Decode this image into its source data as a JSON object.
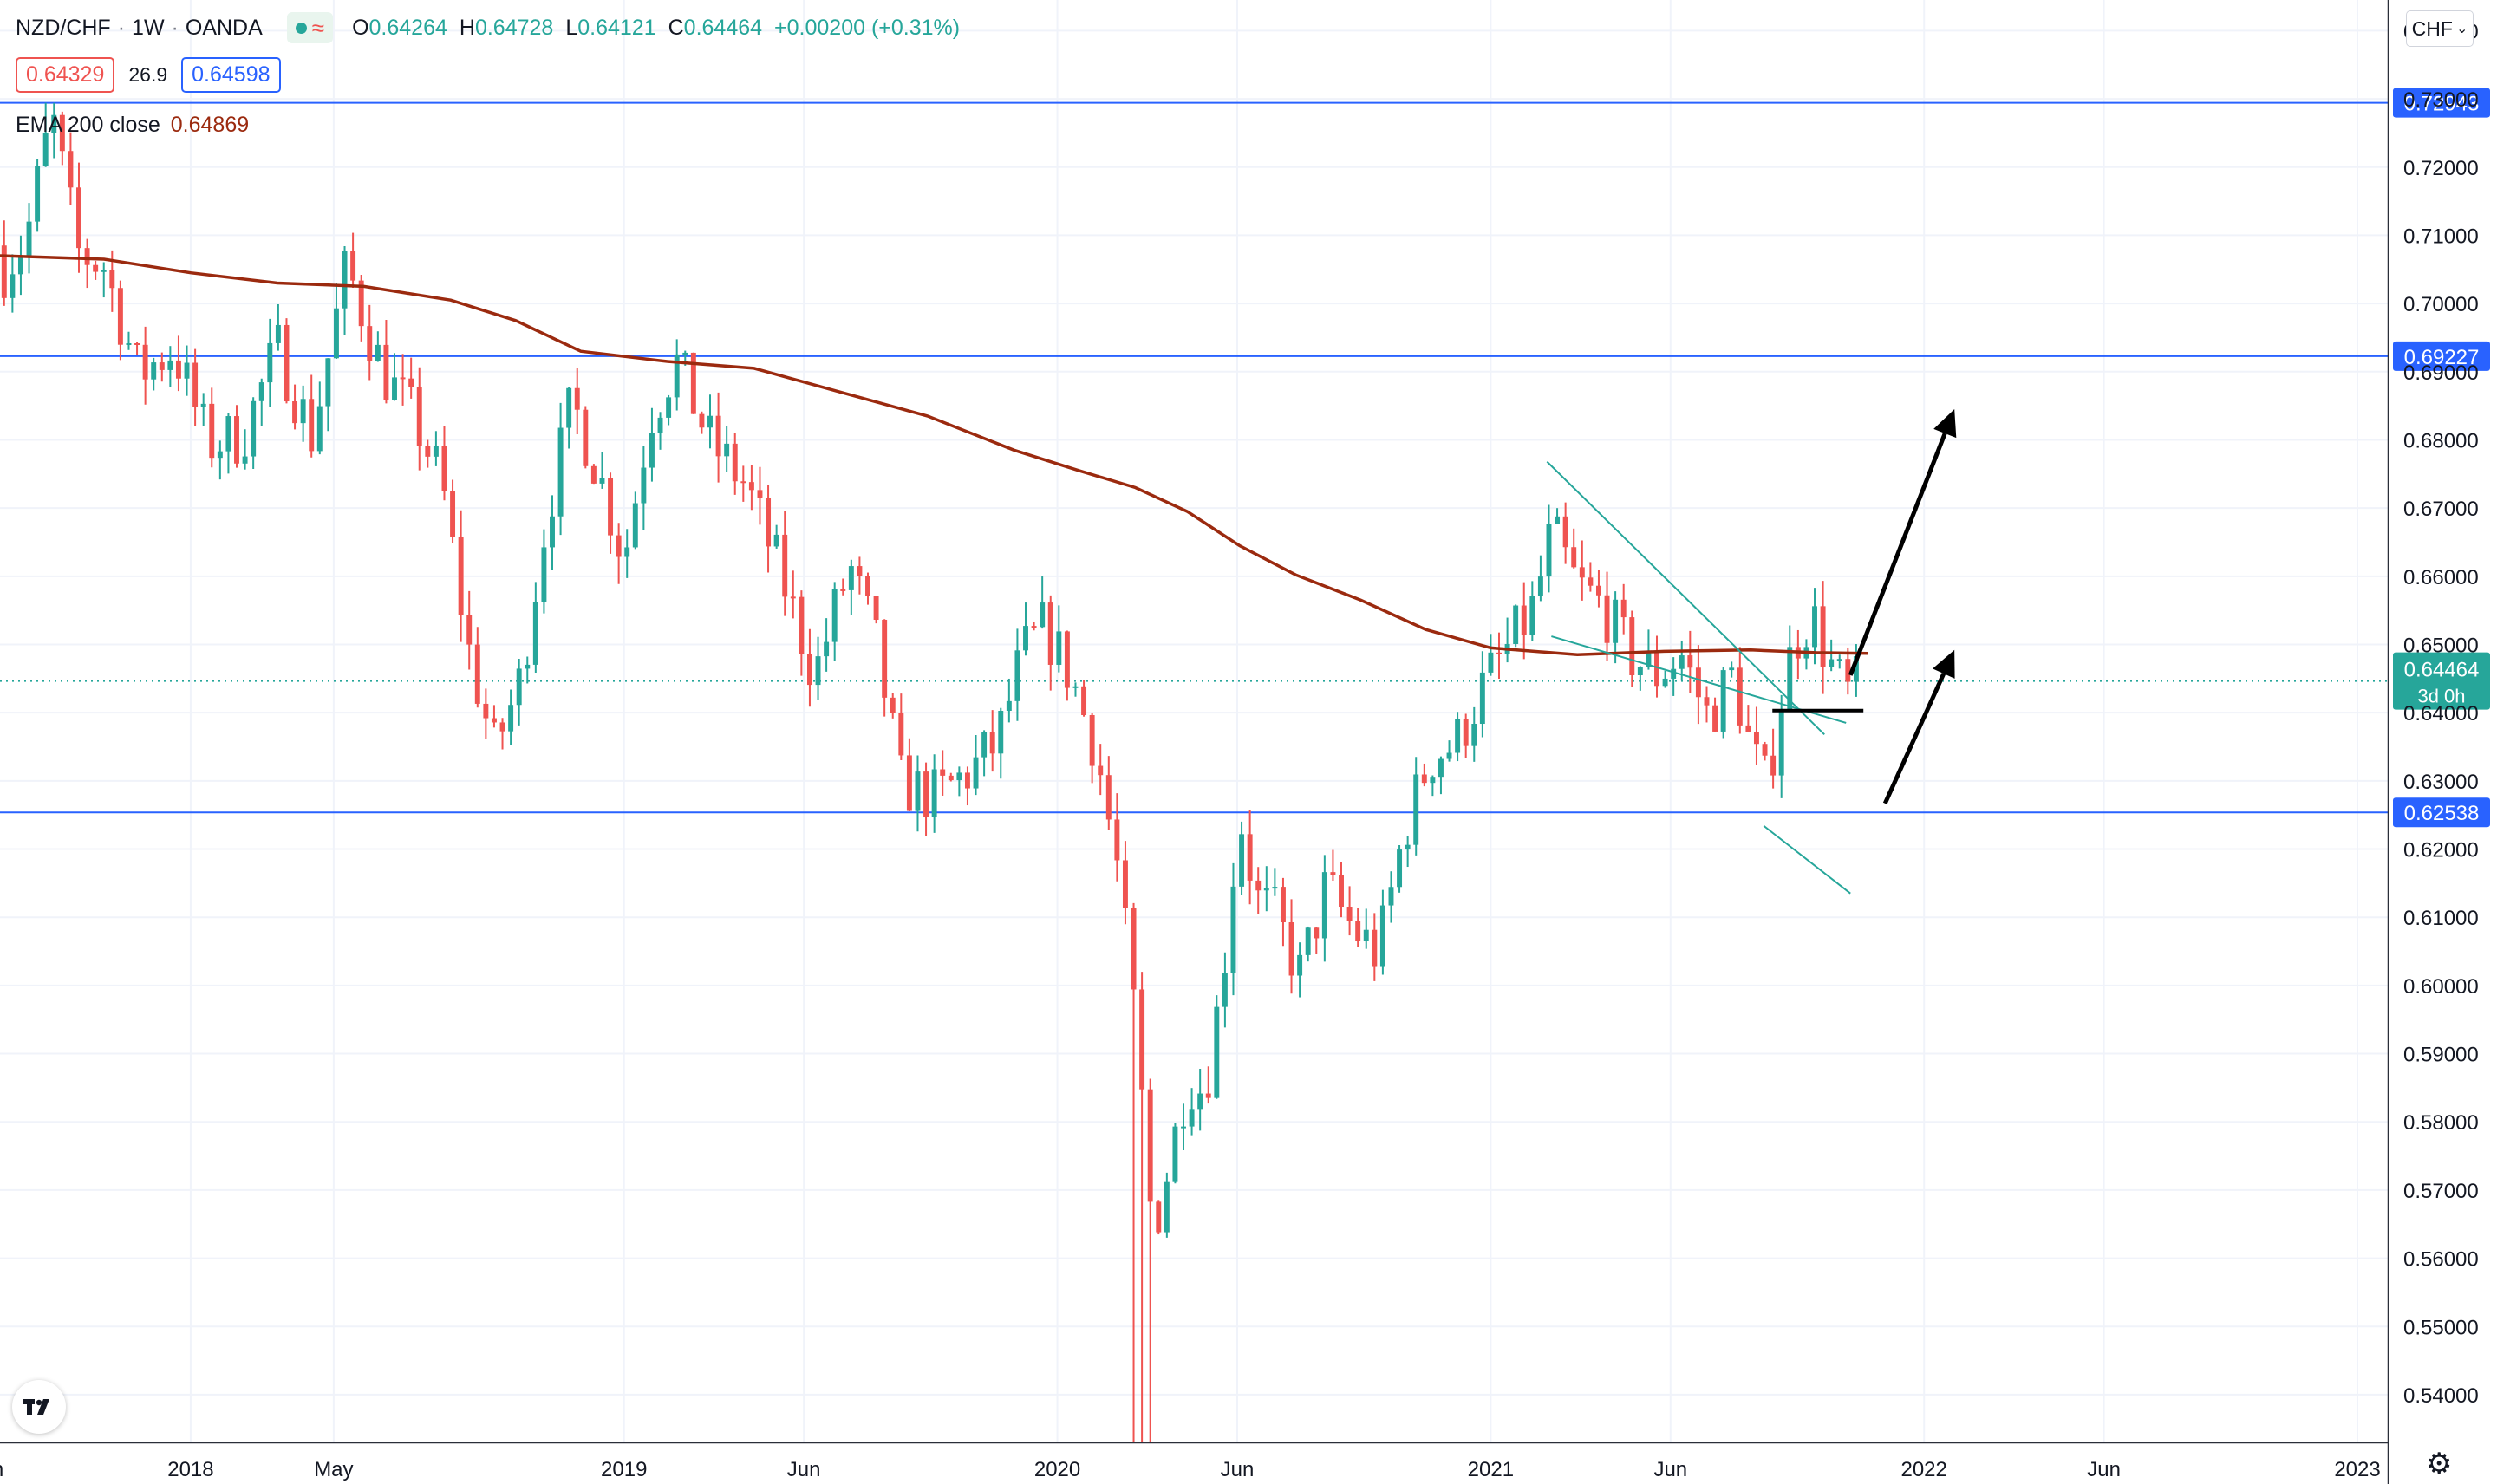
{
  "header": {
    "symbol": "NZD/CHF",
    "interval": "1W",
    "exchange": "OANDA",
    "ohlc": {
      "o_label": "O",
      "o_value": "0.64264",
      "h_label": "H",
      "h_value": "0.64728",
      "l_label": "L",
      "l_value": "0.64121",
      "c_label": "C",
      "c_value": "0.64464",
      "change": "+0.00200 (+0.31%)"
    },
    "bid": "0.64329",
    "spread": "26.9",
    "ask": "0.64598",
    "indicator_name": "EMA 200 close",
    "indicator_value": "0.64869"
  },
  "price_axis": {
    "currency": "CHF",
    "ticks": [
      "0.74000",
      "0.73000",
      "0.72000",
      "0.71000",
      "0.70000",
      "0.69000",
      "0.68000",
      "0.67000",
      "0.66000",
      "0.65000",
      "0.64000",
      "0.63000",
      "0.62000",
      "0.61000",
      "0.60000",
      "0.59000",
      "0.58000",
      "0.57000",
      "0.56000",
      "0.55000",
      "0.54000"
    ],
    "last_price_label": "0.64464",
    "countdown": "3d 0h"
  },
  "time_axis": {
    "labels": [
      "n",
      "2018",
      "May",
      "2019",
      "Jun",
      "2020",
      "Jun",
      "2021",
      "Jun",
      "2022",
      "Jun",
      "2023"
    ]
  },
  "colors": {
    "up": "#26a69a",
    "down": "#ef5350",
    "ema": "#9b2a0f",
    "hline": "#2962ff",
    "channel": "#26a69a",
    "annotation": "#000000"
  },
  "icons": {
    "logo": "tradingview-logo-icon",
    "settings": "gear-icon",
    "dropdown": "chevron-down-icon",
    "status": "market-open-dot-icon"
  },
  "chart_data": {
    "type": "candlestick",
    "ylim": [
      0.533,
      0.7445
    ],
    "xlim": [
      2017.56,
      2023.07
    ],
    "horizontal_lines": [
      {
        "price": 0.72943,
        "label": "0.72943"
      },
      {
        "price": 0.69227,
        "label": "0.69227"
      },
      {
        "price": 0.62538,
        "label": "0.62538"
      }
    ],
    "current_price": 0.64464,
    "ema200_points": [
      [
        2017.56,
        0.707
      ],
      [
        2017.8,
        0.7065
      ],
      [
        2018.0,
        0.7045
      ],
      [
        2018.2,
        0.703
      ],
      [
        2018.4,
        0.7025
      ],
      [
        2018.6,
        0.7005
      ],
      [
        2018.75,
        0.6975
      ],
      [
        2018.9,
        0.693
      ],
      [
        2019.1,
        0.6915
      ],
      [
        2019.3,
        0.6905
      ],
      [
        2019.5,
        0.687
      ],
      [
        2019.7,
        0.6835
      ],
      [
        2019.9,
        0.6785
      ],
      [
        2020.05,
        0.6755
      ],
      [
        2020.18,
        0.673
      ],
      [
        2020.3,
        0.6695
      ],
      [
        2020.42,
        0.6645
      ],
      [
        2020.55,
        0.6602
      ],
      [
        2020.7,
        0.6565
      ],
      [
        2020.85,
        0.6522
      ],
      [
        2021.0,
        0.6495
      ],
      [
        2021.2,
        0.6485
      ],
      [
        2021.4,
        0.649
      ],
      [
        2021.6,
        0.6492
      ],
      [
        2021.75,
        0.6488
      ],
      [
        2021.87,
        0.6487
      ]
    ],
    "trendlines": [
      {
        "points": [
          [
            2021.13,
            0.6768
          ],
          [
            2021.77,
            0.6368
          ]
        ]
      },
      {
        "points": [
          [
            2021.14,
            0.6512
          ],
          [
            2021.82,
            0.6385
          ]
        ]
      },
      {
        "points": [
          [
            2021.63,
            0.6234
          ],
          [
            2021.83,
            0.6135
          ]
        ]
      }
    ],
    "support_segment": [
      [
        2021.65,
        0.6403
      ],
      [
        2021.86,
        0.6403
      ]
    ],
    "arrows": [
      {
        "from": [
          2021.83,
          0.6455
        ],
        "to": [
          2022.07,
          0.6845
        ]
      },
      {
        "from": [
          2021.91,
          0.6267
        ],
        "to": [
          2022.07,
          0.6492
        ]
      }
    ],
    "candle_anchors": [
      [
        2017.56,
        0.7045
      ],
      [
        2017.62,
        0.7095
      ],
      [
        2017.68,
        0.7275
      ],
      [
        2017.74,
        0.7075
      ],
      [
        2017.8,
        0.7055
      ],
      [
        2017.88,
        0.6895
      ],
      [
        2017.96,
        0.6935
      ],
      [
        2018.04,
        0.6795
      ],
      [
        2018.12,
        0.6805
      ],
      [
        2018.2,
        0.6935
      ],
      [
        2018.28,
        0.6805
      ],
      [
        2018.36,
        0.7055
      ],
      [
        2018.44,
        0.6905
      ],
      [
        2018.52,
        0.6825
      ],
      [
        2018.58,
        0.6735
      ],
      [
        2018.64,
        0.6495
      ],
      [
        2018.7,
        0.6345
      ],
      [
        2018.76,
        0.6445
      ],
      [
        2018.82,
        0.6685
      ],
      [
        2018.88,
        0.6855
      ],
      [
        2018.94,
        0.6755
      ],
      [
        2019.0,
        0.6625
      ],
      [
        2019.06,
        0.6835
      ],
      [
        2019.12,
        0.6915
      ],
      [
        2019.2,
        0.6795
      ],
      [
        2019.28,
        0.6735
      ],
      [
        2019.36,
        0.6605
      ],
      [
        2019.44,
        0.6455
      ],
      [
        2019.52,
        0.6615
      ],
      [
        2019.58,
        0.6505
      ],
      [
        2019.64,
        0.6295
      ],
      [
        2019.72,
        0.6275
      ],
      [
        2019.8,
        0.6315
      ],
      [
        2019.86,
        0.6355
      ],
      [
        2019.92,
        0.6485
      ],
      [
        2019.97,
        0.6525
      ],
      [
        2020.03,
        0.6455
      ],
      [
        2020.09,
        0.6345
      ],
      [
        2020.14,
        0.6165
      ],
      [
        2020.18,
        0.5945
      ],
      [
        2020.22,
        0.5635
      ],
      [
        2020.26,
        0.5745
      ],
      [
        2020.3,
        0.5865
      ],
      [
        2020.34,
        0.5845
      ],
      [
        2020.38,
        0.6005
      ],
      [
        2020.42,
        0.6255
      ],
      [
        2020.46,
        0.6125
      ],
      [
        2020.5,
        0.6105
      ],
      [
        2020.56,
        0.6015
      ],
      [
        2020.62,
        0.6145
      ],
      [
        2020.68,
        0.6085
      ],
      [
        2020.74,
        0.6045
      ],
      [
        2020.8,
        0.6225
      ],
      [
        2020.86,
        0.6335
      ],
      [
        2020.92,
        0.6355
      ],
      [
        2020.98,
        0.6435
      ],
      [
        2021.04,
        0.6495
      ],
      [
        2021.1,
        0.6555
      ],
      [
        2021.14,
        0.6665
      ],
      [
        2021.2,
        0.6585
      ],
      [
        2021.26,
        0.6555
      ],
      [
        2021.32,
        0.6485
      ],
      [
        2021.38,
        0.6455
      ],
      [
        2021.44,
        0.6485
      ],
      [
        2021.5,
        0.6395
      ],
      [
        2021.56,
        0.6455
      ],
      [
        2021.6,
        0.6345
      ],
      [
        2021.64,
        0.6285
      ],
      [
        2021.66,
        0.6395
      ],
      [
        2021.7,
        0.6505
      ],
      [
        2021.74,
        0.6545
      ],
      [
        2021.78,
        0.6475
      ],
      [
        2021.82,
        0.6425
      ],
      [
        2021.855,
        0.6446
      ]
    ]
  }
}
